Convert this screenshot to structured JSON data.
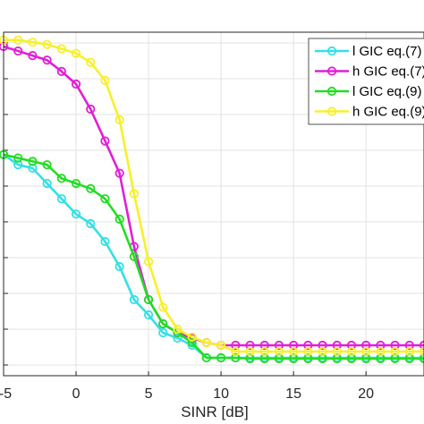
{
  "chart_data": {
    "type": "line",
    "title": "",
    "xlabel": "SINR [dB]",
    "ylabel": "",
    "xlim": [
      -5,
      24
    ],
    "x_ticks": [
      -5,
      0,
      5,
      10,
      15,
      20
    ],
    "x_tick_labels": [
      "-5",
      "0",
      "5",
      "10",
      "15",
      "20"
    ],
    "y_grid_count": 9,
    "grid": true,
    "legend_position": "top-right",
    "x": [
      -5,
      -4,
      -3,
      -2,
      -1,
      0,
      1,
      2,
      3,
      4,
      5,
      6,
      7,
      8,
      9,
      10,
      11,
      12,
      13,
      14,
      15,
      16,
      17,
      18,
      19,
      20,
      21,
      22,
      23,
      24
    ],
    "series": [
      {
        "name": "l GIC eq.(7)",
        "color": "#33e0e6",
        "values": [
          0.34,
          0.31,
          0.3,
          0.27,
          0.24,
          0.21,
          0.19,
          0.15,
          0.1,
          0.05,
          0.03,
          0.01,
          0.005,
          0.002,
          0.001,
          0.001,
          0.001,
          0.001,
          0.001,
          0.001,
          0.001,
          0.001,
          0.001,
          0.001,
          0.001,
          0.001,
          0.001,
          0.001,
          0.001,
          0.001
        ]
      },
      {
        "name": "h GIC eq.(7)",
        "color": "#e11fd6",
        "values": [
          0.7,
          0.68,
          0.66,
          0.64,
          0.59,
          0.54,
          0.47,
          0.38,
          0.29,
          0.14,
          0.05,
          0.02,
          0.01,
          0.005,
          0.003,
          0.002,
          0.002,
          0.002,
          0.002,
          0.002,
          0.002,
          0.002,
          0.002,
          0.002,
          0.002,
          0.002,
          0.002,
          0.002,
          0.002,
          0.002
        ]
      },
      {
        "name": "l GIC eq.(9)",
        "color": "#22dd22",
        "values": [
          0.34,
          0.33,
          0.32,
          0.31,
          0.28,
          0.27,
          0.26,
          0.24,
          0.2,
          0.12,
          0.05,
          0.02,
          0.01,
          0.003,
          0.001,
          0.001,
          0.001,
          0.0008,
          0.0008,
          0.0008,
          0.0008,
          0.0008,
          0.0008,
          0.0008,
          0.0008,
          0.0008,
          0.0008,
          0.0008,
          0.0008,
          0.0008
        ]
      },
      {
        "name": "h GIC eq.(9)",
        "color": "#f7f02a",
        "values": [
          0.73,
          0.73,
          0.72,
          0.71,
          0.69,
          0.67,
          0.63,
          0.55,
          0.44,
          0.25,
          0.11,
          0.04,
          0.015,
          0.006,
          0.003,
          0.002,
          0.0015,
          0.0015,
          0.0015,
          0.0015,
          0.0015,
          0.0015,
          0.0015,
          0.0015,
          0.0015,
          0.0015,
          0.0015,
          0.0015,
          0.0015,
          0.0015
        ]
      }
    ]
  }
}
